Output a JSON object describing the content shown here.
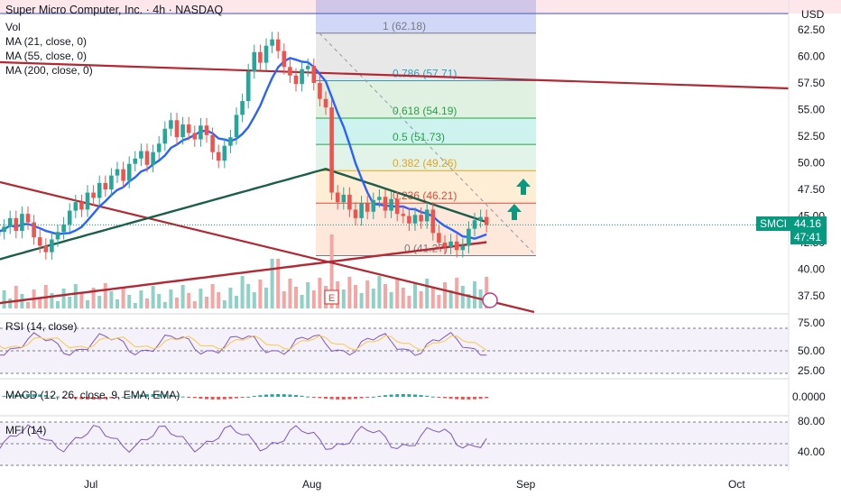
{
  "header": {
    "title": "Super Micro Computer, Inc. · 4h · NASDAQ",
    "indicators": [
      "Vol",
      "MA (21, close, 0)",
      "MA (55, close, 0)",
      "MA (200, close, 0)"
    ],
    "currency": "USD"
  },
  "price_tag": {
    "symbol": "SMCI",
    "price": "44.16",
    "countdown": "47:41"
  },
  "panes": {
    "rsi_label": "RSI (14, close)",
    "macd_label": "MACD (12, 26, close, 9, EMA, EMA)",
    "mfi_label": "MFI (14)"
  },
  "colors": {
    "ma21": "#2962ff",
    "ma55": "#1b5e4a",
    "ma200": "#b22833",
    "trendline": "#b22833",
    "up": "#26a69a",
    "down": "#ef5350",
    "arrow": "#089981"
  },
  "chart_data": {
    "type": "candlestick",
    "x_ticks": [
      "Jul",
      "Aug",
      "Sep",
      "Oct"
    ],
    "y_ticks": [
      37.5,
      40.0,
      42.5,
      45.0,
      47.5,
      50.0,
      52.5,
      55.0,
      57.5,
      60.0,
      62.5
    ],
    "ylim": [
      35.8,
      63.5
    ],
    "fibonacci": [
      {
        "level": "1",
        "price": 62.18
      },
      {
        "level": "0.786",
        "price": 57.71
      },
      {
        "level": "0.618",
        "price": 54.19
      },
      {
        "level": "0.5",
        "price": 51.73
      },
      {
        "level": "0.382",
        "price": 49.26
      },
      {
        "level": "0.236",
        "price": 46.21
      },
      {
        "level": "0",
        "price": 41.27
      }
    ],
    "fib_labels": [
      "1 (62.18)",
      "0.786 (57.71)",
      "0.618 (54.19)",
      "0.5 (51.73)",
      "0.382 (49.26)",
      "0.236 (46.21)",
      "0 (41.27)"
    ],
    "last_price": 44.16,
    "closes": [
      43.5,
      44.0,
      44.8,
      43.6,
      45.2,
      44.4,
      43.0,
      42.2,
      41.6,
      42.8,
      43.5,
      44.2,
      45.5,
      46.3,
      45.6,
      47.2,
      46.7,
      48.1,
      47.5,
      48.8,
      49.4,
      48.3,
      49.9,
      50.4,
      51.1,
      49.8,
      51.0,
      51.8,
      53.2,
      54.0,
      52.4,
      53.6,
      52.8,
      52.2,
      53.5,
      52.6,
      51.0,
      50.2,
      51.6,
      52.4,
      54.5,
      55.8,
      58.6,
      60.4,
      59.4,
      61.0,
      61.6,
      60.5,
      59.0,
      58.2,
      57.4,
      58.8,
      59.1,
      57.5,
      56.0,
      55.2,
      47.2,
      46.3,
      47.0,
      45.6,
      44.8,
      46.2,
      45.4,
      46.5,
      46.8,
      45.5,
      46.6,
      45.2,
      45.0,
      44.3,
      45.1,
      44.5,
      45.6,
      43.4,
      42.5,
      42.1,
      42.6,
      41.8,
      42.2,
      43.8,
      44.6,
      44.9,
      44.16
    ],
    "rsi_ticks": [
      25.0,
      50.0,
      75.0
    ],
    "macd_ticks": [
      "0.0000"
    ],
    "mfi_ticks": [
      40.0,
      80.0
    ]
  }
}
